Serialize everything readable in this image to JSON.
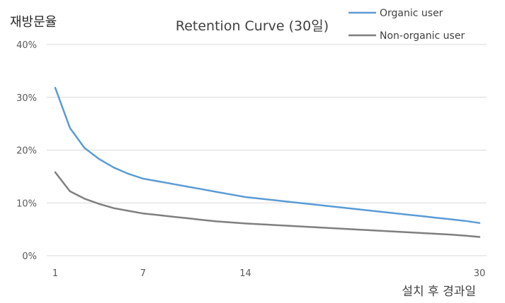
{
  "chart_data": {
    "type": "line",
    "title": "Retention Curve (30일)",
    "ylabel": "재방문율",
    "xlabel": "설치 후 경과일",
    "xlim": [
      1,
      30
    ],
    "ylim": [
      0,
      40
    ],
    "x_ticks": [
      1,
      7,
      14,
      30
    ],
    "y_ticks": [
      0,
      10,
      20,
      30,
      40
    ],
    "y_tick_labels": [
      "0%",
      "10%",
      "20%",
      "30%",
      "40%"
    ],
    "grid": true,
    "legend_position": "top-right",
    "x": [
      1,
      2,
      3,
      4,
      5,
      6,
      7,
      8,
      9,
      10,
      11,
      12,
      13,
      14,
      15,
      16,
      17,
      18,
      19,
      20,
      21,
      22,
      23,
      24,
      25,
      26,
      27,
      28,
      29,
      30
    ],
    "series": [
      {
        "name": "Organic user",
        "color": "#5b9bd5",
        "values": [
          31.8,
          24.2,
          20.4,
          18.3,
          16.7,
          15.5,
          14.6,
          14.1,
          13.6,
          13.1,
          12.6,
          12.1,
          11.6,
          11.1,
          10.8,
          10.5,
          10.2,
          9.9,
          9.6,
          9.3,
          9.0,
          8.7,
          8.4,
          8.1,
          7.8,
          7.5,
          7.2,
          6.9,
          6.6,
          6.2
        ]
      },
      {
        "name": "Non-organic user",
        "color": "#7f7f7f",
        "values": [
          15.8,
          12.2,
          10.8,
          9.8,
          9.0,
          8.5,
          8.0,
          7.7,
          7.4,
          7.1,
          6.8,
          6.5,
          6.3,
          6.1,
          5.95,
          5.8,
          5.65,
          5.5,
          5.35,
          5.2,
          5.05,
          4.9,
          4.75,
          4.6,
          4.45,
          4.3,
          4.15,
          4.0,
          3.8,
          3.55
        ]
      }
    ]
  }
}
